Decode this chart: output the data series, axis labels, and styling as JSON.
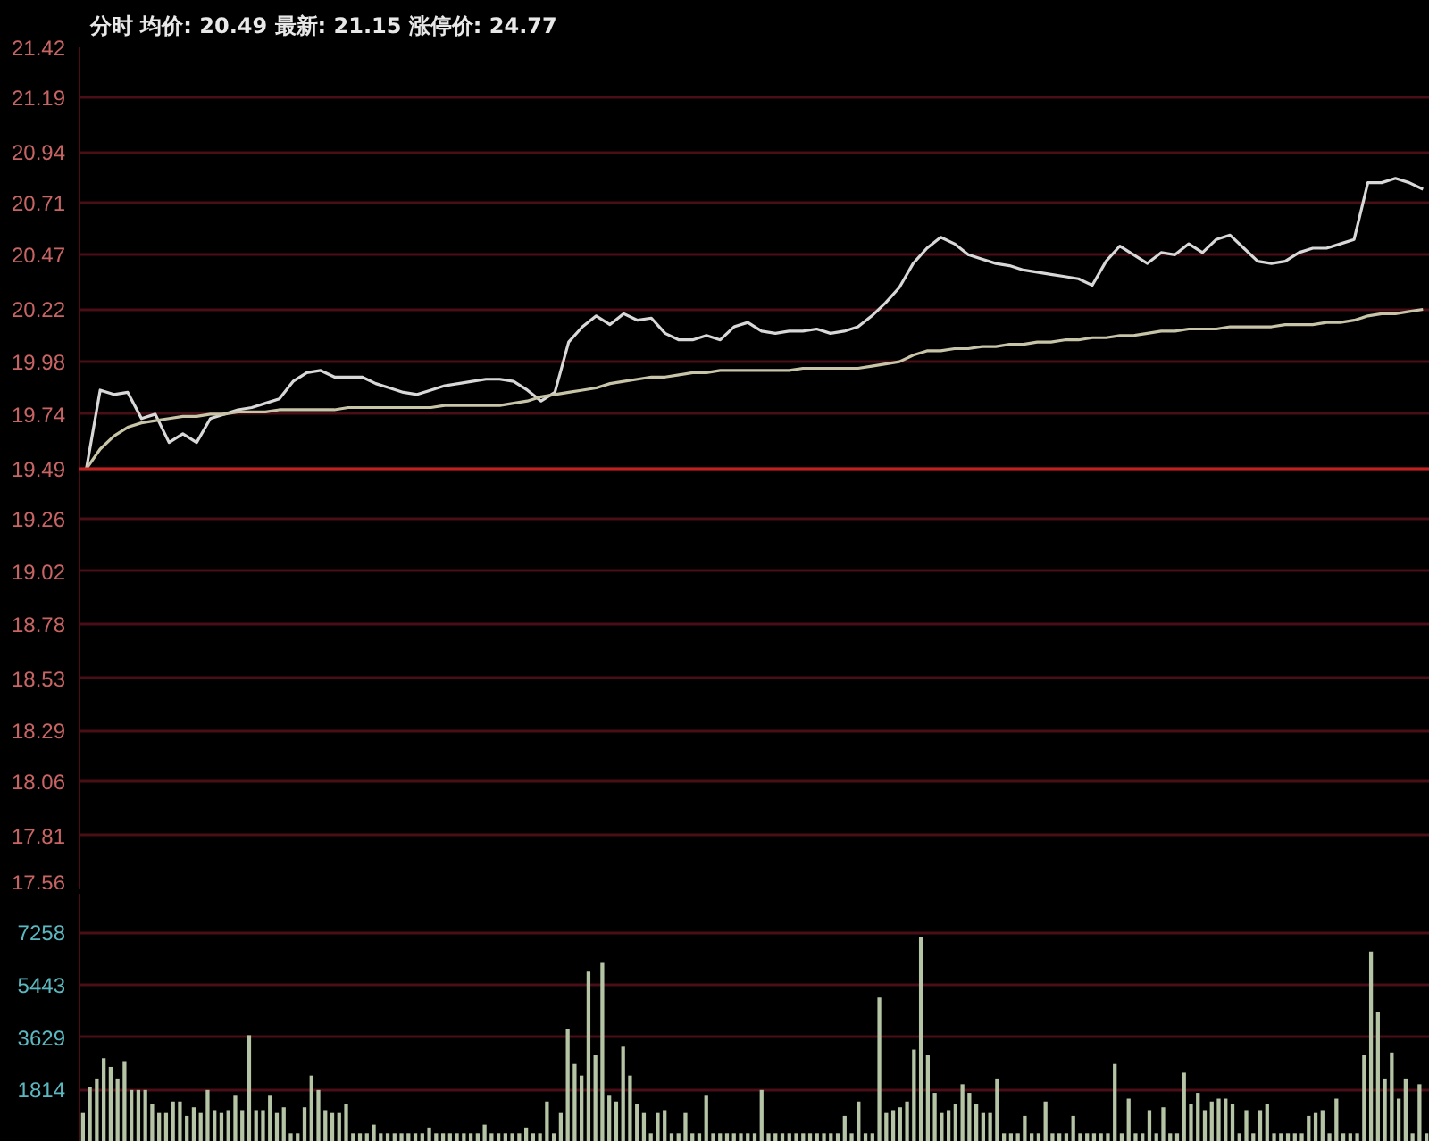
{
  "chart_data": [
    {
      "type": "line",
      "title": "分时 均价: 20.49 最新: 21.15 涨停价: 24.77",
      "ylim": [
        17.56,
        21.42
      ],
      "yticks": [
        17.56,
        17.81,
        18.06,
        18.29,
        18.53,
        18.78,
        19.02,
        19.26,
        19.49,
        19.74,
        19.98,
        20.22,
        20.47,
        20.71,
        20.94,
        21.19,
        21.42
      ],
      "tick_labels": "y",
      "grid": "y",
      "marker": "none",
      "line_style": "solid",
      "categories": [
        null,
        null,
        null,
        null,
        null,
        null,
        null,
        null,
        null,
        null,
        null,
        null,
        null,
        null,
        null,
        null,
        null,
        null,
        null,
        null,
        null,
        null,
        null,
        null,
        null,
        null,
        null,
        null,
        null,
        null,
        null,
        null,
        null,
        null,
        null,
        null,
        null,
        null,
        null,
        null,
        null,
        null,
        null,
        null,
        null,
        null,
        null,
        null,
        null,
        null,
        null,
        null,
        null,
        null,
        null,
        null,
        null,
        null,
        null,
        null,
        null,
        null,
        null,
        null,
        null,
        null,
        null,
        null,
        null,
        null,
        null,
        null,
        null,
        null,
        null,
        null,
        null,
        null,
        null,
        null,
        null,
        null,
        null,
        null,
        null,
        null,
        null,
        null,
        null,
        null,
        null,
        null,
        null,
        null,
        null,
        null,
        null,
        null
      ],
      "series": [
        {
          "color": "#d8d8d8",
          "values": [
            19.49,
            19.85,
            19.83,
            19.84,
            19.72,
            19.74,
            19.61,
            19.65,
            19.61,
            19.72,
            19.74,
            19.76,
            19.77,
            19.79,
            19.81,
            19.89,
            19.93,
            19.94,
            19.91,
            19.91,
            19.91,
            19.88,
            19.86,
            19.84,
            19.83,
            19.85,
            19.87,
            19.88,
            19.89,
            19.9,
            19.9,
            19.89,
            19.85,
            19.8,
            19.84,
            20.07,
            20.14,
            20.19,
            20.15,
            20.2,
            20.17,
            20.18,
            20.11,
            20.08,
            20.08,
            20.1,
            20.08,
            20.14,
            20.16,
            20.12,
            20.11,
            20.12,
            20.12,
            20.13,
            20.11,
            20.12,
            20.14,
            20.19,
            20.25,
            20.32,
            20.43,
            20.5,
            20.55,
            20.52,
            20.47,
            20.45,
            20.43,
            20.42,
            20.4,
            20.39,
            20.38,
            20.37,
            20.36,
            20.33,
            20.44,
            20.51,
            20.47,
            20.43,
            20.48,
            20.47,
            20.52,
            20.48,
            20.54,
            20.56,
            20.5,
            20.44,
            20.43,
            20.44,
            20.48,
            20.5,
            20.5,
            20.52,
            20.54,
            20.8,
            20.8,
            20.82,
            20.8,
            20.77
          ]
        },
        {
          "color": "#c8c4a8",
          "values": [
            19.49,
            19.58,
            19.64,
            19.68,
            19.7,
            19.71,
            19.72,
            19.73,
            19.73,
            19.74,
            19.74,
            19.75,
            19.75,
            19.75,
            19.76,
            19.76,
            19.76,
            19.76,
            19.76,
            19.77,
            19.77,
            19.77,
            19.77,
            19.77,
            19.77,
            19.77,
            19.78,
            19.78,
            19.78,
            19.78,
            19.78,
            19.79,
            19.8,
            19.82,
            19.83,
            19.84,
            19.85,
            19.86,
            19.88,
            19.89,
            19.9,
            19.91,
            19.91,
            19.92,
            19.93,
            19.93,
            19.94,
            19.94,
            19.94,
            19.94,
            19.94,
            19.94,
            19.95,
            19.95,
            19.95,
            19.95,
            19.95,
            19.96,
            19.97,
            19.98,
            20.01,
            20.03,
            20.03,
            20.04,
            20.04,
            20.05,
            20.05,
            20.06,
            20.06,
            20.07,
            20.07,
            20.08,
            20.08,
            20.09,
            20.09,
            20.1,
            20.1,
            20.11,
            20.12,
            20.12,
            20.13,
            20.13,
            20.13,
            20.14,
            20.14,
            20.14,
            20.14,
            20.15,
            20.15,
            20.15,
            20.16,
            20.16,
            20.17,
            20.19,
            20.2,
            20.2,
            20.21,
            20.22
          ]
        }
      ],
      "ref_lines": [
        {
          "axis": "y",
          "value": 19.49,
          "color": "#c02020"
        }
      ]
    },
    {
      "type": "bar",
      "ylim": [
        0,
        8600
      ],
      "yticks": [
        1814,
        3629,
        5443,
        7258
      ],
      "tick_labels": "y",
      "grid": "y",
      "categories": [
        null,
        null,
        null,
        null,
        null,
        null,
        null,
        null,
        null,
        null,
        null,
        null,
        null,
        null,
        null,
        null,
        null,
        null,
        null,
        null,
        null,
        null,
        null,
        null,
        null,
        null,
        null,
        null,
        null,
        null,
        null,
        null,
        null,
        null,
        null,
        null,
        null,
        null,
        null,
        null,
        null,
        null,
        null,
        null,
        null,
        null,
        null,
        null,
        null,
        null,
        null,
        null,
        null,
        null,
        null,
        null,
        null,
        null,
        null,
        null,
        null,
        null,
        null,
        null,
        null,
        null,
        null,
        null,
        null,
        null,
        null,
        null,
        null,
        null,
        null,
        null,
        null,
        null,
        null,
        null,
        null,
        null,
        null,
        null,
        null,
        null,
        null,
        null,
        null,
        null,
        null,
        null,
        null,
        null,
        null,
        null,
        null,
        null,
        null,
        null,
        null,
        null,
        null,
        null,
        null,
        null,
        null,
        null,
        null,
        null,
        null,
        null,
        null,
        null,
        null,
        null,
        null,
        null,
        null,
        null,
        null,
        null,
        null,
        null,
        null,
        null,
        null,
        null,
        null,
        null,
        null,
        null,
        null,
        null,
        null,
        null,
        null,
        null,
        null,
        null,
        null,
        null,
        null,
        null,
        null,
        null,
        null,
        null,
        null,
        null,
        null,
        null,
        null,
        null,
        null,
        null,
        null,
        null,
        null,
        null,
        null,
        null,
        null,
        null,
        null,
        null,
        null,
        null,
        null,
        null,
        null,
        null,
        null,
        null,
        null,
        null,
        null,
        null,
        null,
        null,
        null,
        null,
        null,
        null,
        null,
        null,
        null,
        null,
        null,
        null,
        null,
        null,
        null,
        null,
        null
      ],
      "series": [
        {
          "color": "#b4c4a4",
          "values": [
            1000,
            1900,
            2200,
            2900,
            2600,
            2200,
            2800,
            1800,
            1800,
            1800,
            1300,
            1000,
            1000,
            1400,
            1400,
            900,
            1200,
            1000,
            1800,
            1100,
            1000,
            1100,
            1600,
            1100,
            3700,
            1100,
            1100,
            1600,
            1000,
            1200,
            300,
            300,
            1200,
            2300,
            1800,
            1100,
            1000,
            1000,
            1300,
            300,
            300,
            300,
            600,
            300,
            300,
            300,
            300,
            300,
            300,
            300,
            500,
            300,
            300,
            300,
            300,
            300,
            300,
            300,
            600,
            300,
            300,
            300,
            300,
            300,
            500,
            300,
            300,
            1400,
            300,
            1000,
            3900,
            2700,
            2300,
            5900,
            3000,
            6200,
            1600,
            1400,
            3300,
            2300,
            1300,
            1000,
            300,
            1000,
            1100,
            300,
            300,
            1000,
            300,
            300,
            1600,
            300,
            300,
            300,
            300,
            300,
            300,
            300,
            1800,
            300,
            300,
            300,
            300,
            300,
            300,
            300,
            300,
            300,
            300,
            300,
            900,
            300,
            1400,
            300,
            300,
            5000,
            1000,
            1100,
            1200,
            1400,
            3200,
            7100,
            3000,
            1700,
            1000,
            1100,
            1300,
            2000,
            1700,
            1300,
            1000,
            1000,
            2200,
            300,
            300,
            300,
            900,
            300,
            300,
            1400,
            300,
            300,
            300,
            900,
            300,
            300,
            300,
            300,
            300,
            2700,
            300,
            1500,
            300,
            300,
            1100,
            300,
            1200,
            300,
            300,
            2400,
            1300,
            1700,
            1100,
            1400,
            1500,
            1500,
            1300,
            300,
            1100,
            300,
            1100,
            1300,
            300,
            300,
            300,
            300,
            300,
            900,
            1000,
            1100,
            300,
            1500,
            300,
            300,
            300,
            3000,
            6600,
            4500,
            2200,
            3100,
            1500,
            2200,
            300,
            2000,
            300
          ]
        }
      ]
    }
  ]
}
